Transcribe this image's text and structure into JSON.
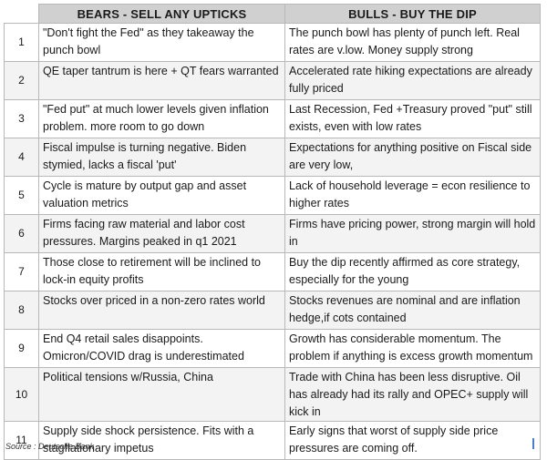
{
  "header": {
    "number_col": "",
    "bears": "BEARS - SELL ANY UPTICKS",
    "bulls": "BULLS - BUY THE DIP"
  },
  "rows": [
    {
      "n": "1",
      "bear": "\"Don't fight the Fed\" as they takeaway the punch bowl",
      "bull": "The punch bowl has plenty of punch left. Real rates are v.low.  Money supply strong"
    },
    {
      "n": "2",
      "bear": "QE taper tantrum is here + QT fears warranted",
      "bull": "Accelerated rate hiking expectations are already fully priced"
    },
    {
      "n": "3",
      "bear": "\"Fed put\" at much lower levels given inflation problem. more room to go down",
      "bull": "Last Recession, Fed +Treasury proved \"put\" still exists, even with low rates"
    },
    {
      "n": "4",
      "bear": "Fiscal impulse is turning negative. Biden stymied, lacks a fiscal 'put'",
      "bull": "Expectations for anything positive on Fiscal side are very low,"
    },
    {
      "n": "5",
      "bear": "Cycle is mature by output gap and asset valuation metrics",
      "bull": " Lack of household leverage = econ resilience to higher rates"
    },
    {
      "n": "6",
      "bear": "Firms facing raw material and labor cost pressures. Margins peaked in q1  2021",
      "bull": "Firms have pricing power, strong margin will hold in"
    },
    {
      "n": "7",
      "bear": "Those close to retirement  will be inclined to lock-in equity profits",
      "bull": "Buy the dip recently affirmed as core strategy, especially for the young"
    },
    {
      "n": "8",
      "bear": "Stocks over priced in a non-zero rates world",
      "bull": "Stocks revenues are nominal and are inflation hedge,if cots contained"
    },
    {
      "n": "9",
      "bear": "End Q4 retail sales disappoints. Omicron/COVID drag is underestimated",
      "bull": "Growth has considerable momentum.  The problem if anything is excess growth momentum"
    },
    {
      "n": "10",
      "bear": "Political tensions w/Russia, China",
      "bull": "Trade with China has been less disruptive. Oil has already had its rally and OPEC+ supply will kick in"
    },
    {
      "n": "11",
      "bear": "Supply side shock persistence. Fits with a stagflationary impetus",
      "bull": "Early signs that worst of supply side price pressures are coming off."
    }
  ],
  "footer": {
    "source": "Source : Deutsche Bank"
  }
}
